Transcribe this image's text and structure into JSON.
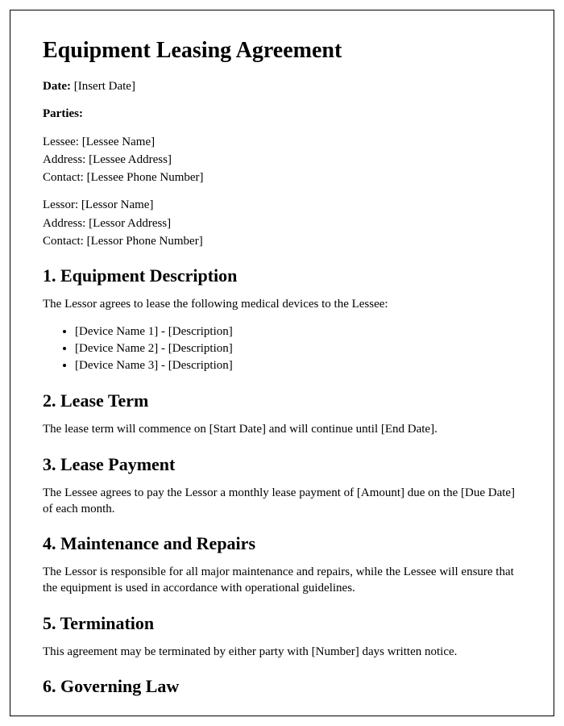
{
  "title": "Equipment Leasing Agreement",
  "date_label": "Date:",
  "date_value": " [Insert Date]",
  "parties_label": "Parties:",
  "lessee": {
    "line1": "Lessee: [Lessee Name]",
    "line2": "Address: [Lessee Address]",
    "line3": "Contact: [Lessee Phone Number]"
  },
  "lessor": {
    "line1": "Lessor: [Lessor Name]",
    "line2": "Address: [Lessor Address]",
    "line3": "Contact: [Lessor Phone Number]"
  },
  "s1": {
    "heading": "1. Equipment Description",
    "intro": "The Lessor agrees to lease the following medical devices to the Lessee:",
    "items": [
      "[Device Name 1] - [Description]",
      "[Device Name 2] - [Description]",
      "[Device Name 3] - [Description]"
    ]
  },
  "s2": {
    "heading": "2. Lease Term",
    "body": "The lease term will commence on [Start Date] and will continue until [End Date]."
  },
  "s3": {
    "heading": "3. Lease Payment",
    "body": "The Lessee agrees to pay the Lessor a monthly lease payment of [Amount] due on the [Due Date] of each month."
  },
  "s4": {
    "heading": "4. Maintenance and Repairs",
    "body": "The Lessor is responsible for all major maintenance and repairs, while the Lessee will ensure that the equipment is used in accordance with operational guidelines."
  },
  "s5": {
    "heading": "5. Termination",
    "body": "This agreement may be terminated by either party with [Number] days written notice."
  },
  "s6": {
    "heading": "6. Governing Law"
  }
}
